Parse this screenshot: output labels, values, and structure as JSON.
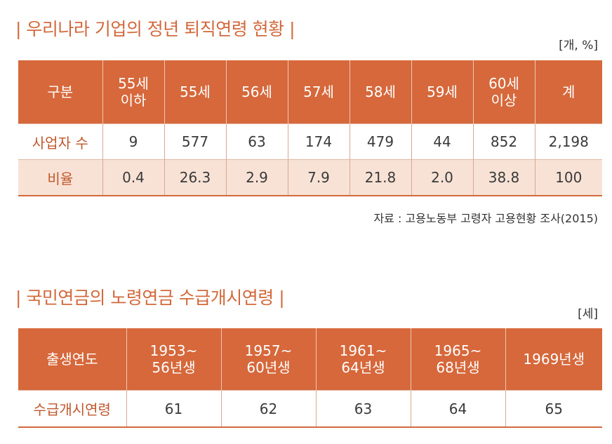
{
  "section1": {
    "title": "| 우리나라 기업의 정년 퇴직연령 현황 |",
    "unit": "[개, %]",
    "headers": [
      [
        "구분"
      ],
      [
        "55세",
        "이하"
      ],
      [
        "55세"
      ],
      [
        "56세"
      ],
      [
        "57세"
      ],
      [
        "58세"
      ],
      [
        "59세"
      ],
      [
        "60세",
        "이상"
      ],
      [
        "계"
      ]
    ],
    "rows": [
      {
        "label": "사업자 수",
        "values": [
          "9",
          "577",
          "63",
          "174",
          "479",
          "44",
          "852",
          "2,198"
        ]
      },
      {
        "label": "비율",
        "values": [
          "0.4",
          "26.3",
          "2.9",
          "7.9",
          "21.8",
          "2.0",
          "38.8",
          "100"
        ]
      }
    ],
    "source": "자료 : 고용노동부 고령자 고용현황 조사(2015)"
  },
  "section2": {
    "title": "| 국민연금의 노령연금 수급개시연령 |",
    "unit": "[세]",
    "headers": [
      [
        "출생연도"
      ],
      [
        "1953~",
        "56년생"
      ],
      [
        "1957~",
        "60년생"
      ],
      [
        "1961~",
        "64년생"
      ],
      [
        "1965~",
        "68년생"
      ],
      [
        "1969년생"
      ]
    ],
    "row": {
      "label": "수급개시연령",
      "values": [
        "61",
        "62",
        "63",
        "64",
        "65"
      ]
    }
  },
  "colors": {
    "accent": "#d6683b",
    "title": "#d2693c",
    "alt_row": "#f8e2d6"
  }
}
